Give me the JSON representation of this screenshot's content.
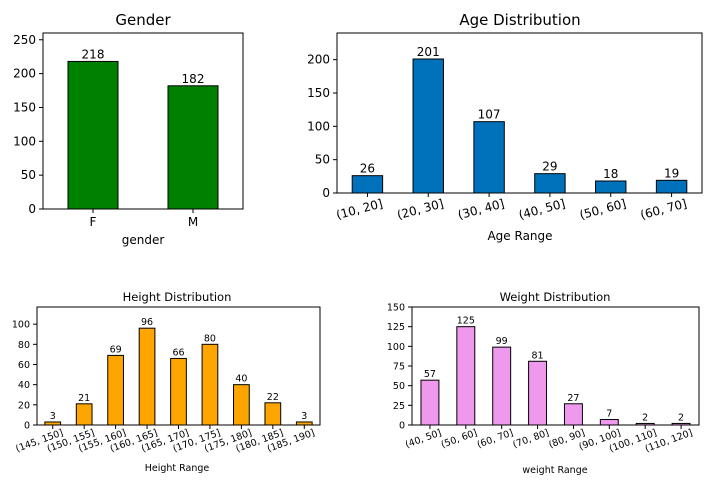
{
  "chart_data": [
    {
      "type": "bar",
      "title": "Gender",
      "xlabel": "gender",
      "ylabel": "",
      "categories": [
        "F",
        "M"
      ],
      "values": [
        218,
        182
      ],
      "ylim": [
        0,
        260
      ],
      "yticks": [
        0,
        50,
        100,
        150,
        200,
        250
      ],
      "color": "#008000",
      "grid": false,
      "xtick_rotation": 0,
      "data_labels": true
    },
    {
      "type": "bar",
      "title": "Age Distribution",
      "xlabel": "Age Range",
      "ylabel": "",
      "categories": [
        "(10, 20]",
        "(20, 30]",
        "(30, 40]",
        "(40, 50]",
        "(50, 60]",
        "(60, 70]"
      ],
      "values": [
        26,
        201,
        107,
        29,
        18,
        19
      ],
      "ylim": [
        0,
        240
      ],
      "yticks": [
        0,
        50,
        100,
        150,
        200
      ],
      "color": "#0072bb",
      "grid": false,
      "xtick_rotation": 15,
      "data_labels": true
    },
    {
      "type": "bar",
      "title": "Height Distribution",
      "xlabel": "Height Range",
      "ylabel": "",
      "categories": [
        "(145, 150]",
        "(150, 155]",
        "(155, 160]",
        "(160, 165]",
        "(165, 170]",
        "(170, 175]",
        "(175, 180]",
        "(180, 185]",
        "(185, 190]"
      ],
      "values": [
        3,
        21,
        69,
        96,
        66,
        80,
        40,
        22,
        3
      ],
      "ylim": [
        0,
        117
      ],
      "yticks": [
        0,
        20,
        40,
        60,
        80,
        100
      ],
      "color": "#ffa500",
      "grid": false,
      "xtick_rotation": 20,
      "data_labels": true
    },
    {
      "type": "bar",
      "title": "Weight Distribution",
      "xlabel": "weight Range",
      "ylabel": "",
      "categories": [
        "(40, 50]",
        "(50, 60]",
        "(60, 70]",
        "(70, 80]",
        "(80, 90]",
        "(90, 100]",
        "(100, 110]",
        "(110, 120]"
      ],
      "values": [
        57,
        125,
        99,
        81,
        27,
        7,
        2,
        2
      ],
      "ylim": [
        0,
        150
      ],
      "yticks": [
        0,
        25,
        50,
        75,
        100,
        125,
        150
      ],
      "color": "#ee99ee",
      "grid": false,
      "xtick_rotation": 20,
      "data_labels": true
    }
  ]
}
